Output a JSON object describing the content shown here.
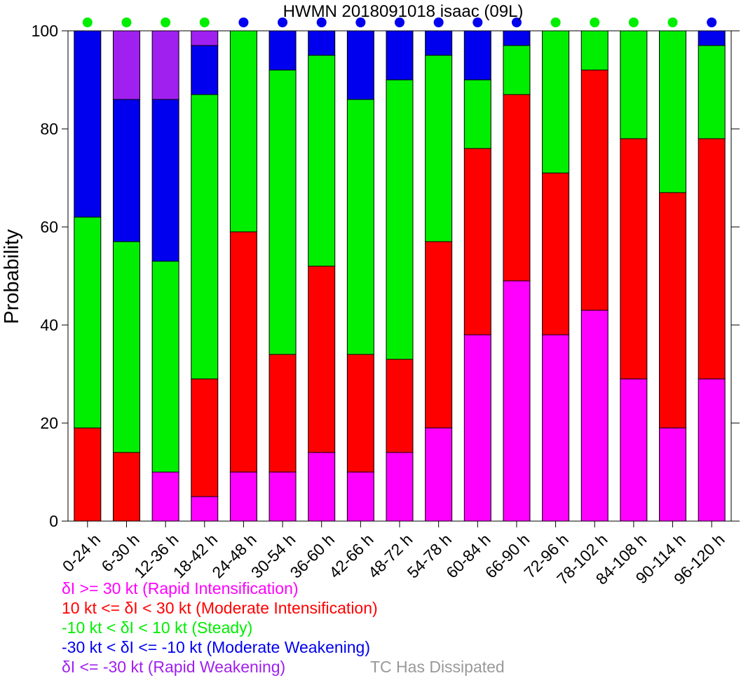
{
  "chart_data": {
    "type": "bar",
    "stacked": true,
    "title": "HWMN 2018091018 isaac (09L)",
    "xlabel": "",
    "ylabel": "Probability",
    "ylim": [
      0,
      100
    ],
    "yticks": [
      "0",
      "20",
      "40",
      "60",
      "80",
      "100"
    ],
    "grid": false,
    "categories": [
      "0-24 h",
      "6-30 h",
      "12-36 h",
      "18-42 h",
      "24-48 h",
      "30-54 h",
      "36-60 h",
      "42-66 h",
      "48-72 h",
      "54-78 h",
      "60-84 h",
      "66-90 h",
      "72-96 h",
      "78-102 h",
      "84-108 h",
      "90-114 h",
      "96-120 h"
    ],
    "series": [
      {
        "name": "δI >= 30 kt (Rapid Intensification)",
        "color": "#ff00ff",
        "values": [
          0,
          0,
          10,
          5,
          10,
          10,
          14,
          10,
          14,
          19,
          38,
          49,
          38,
          43,
          29,
          19,
          29
        ]
      },
      {
        "name": "10 kt <= δI < 30 kt (Moderate Intensification)",
        "color": "#ff0000",
        "values": [
          19,
          14,
          0,
          24,
          49,
          24,
          38,
          24,
          19,
          38,
          38,
          38,
          33,
          49,
          49,
          48,
          49
        ]
      },
      {
        "name": "-10 kt < δI < 10 kt (Steady)",
        "color": "#00ee00",
        "values": [
          43,
          43,
          43,
          58,
          41,
          58,
          43,
          52,
          57,
          38,
          14,
          10,
          29,
          8,
          22,
          33,
          19
        ]
      },
      {
        "name": "-30 kt < δI <= -10 kt (Moderate Weakening)",
        "color": "#0000ee",
        "values": [
          38,
          29,
          33,
          10,
          0,
          8,
          5,
          14,
          10,
          5,
          10,
          3,
          0,
          0,
          0,
          0,
          3
        ]
      },
      {
        "name": "δI <= -30 kt (Rapid Weakening)",
        "color": "#a020f0",
        "values": [
          0,
          14,
          14,
          3,
          0,
          0,
          0,
          0,
          0,
          0,
          0,
          0,
          0,
          0,
          0,
          0,
          0
        ]
      }
    ],
    "marker_colors": [
      "#00ee00",
      "#00ee00",
      "#00ee00",
      "#00ee00",
      "#0000ee",
      "#0000ee",
      "#0000ee",
      "#0000ee",
      "#0000ee",
      "#0000ee",
      "#0000ee",
      "#0000ee",
      "#00ee00",
      "#00ee00",
      "#00ee00",
      "#00ee00",
      "#0000ee"
    ],
    "legend_placement": "bottom-left"
  },
  "legend": {
    "items": [
      {
        "label": "δI >= 30 kt (Rapid Intensification)",
        "color": "#ff00ff"
      },
      {
        "label": "10 kt <= δI < 30 kt (Moderate Intensification)",
        "color": "#ff0000"
      },
      {
        "label": "-10 kt < δI < 10 kt (Steady)",
        "color": "#00ee00"
      },
      {
        "label": "-30 kt < δI <= -10 kt (Moderate Weakening)",
        "color": "#0000ee"
      },
      {
        "label": "δI <= -30 kt (Rapid Weakening)",
        "color": "#a020f0"
      }
    ],
    "dissipated_label": "TC Has Dissipated",
    "dissipated_color": "#999999"
  }
}
